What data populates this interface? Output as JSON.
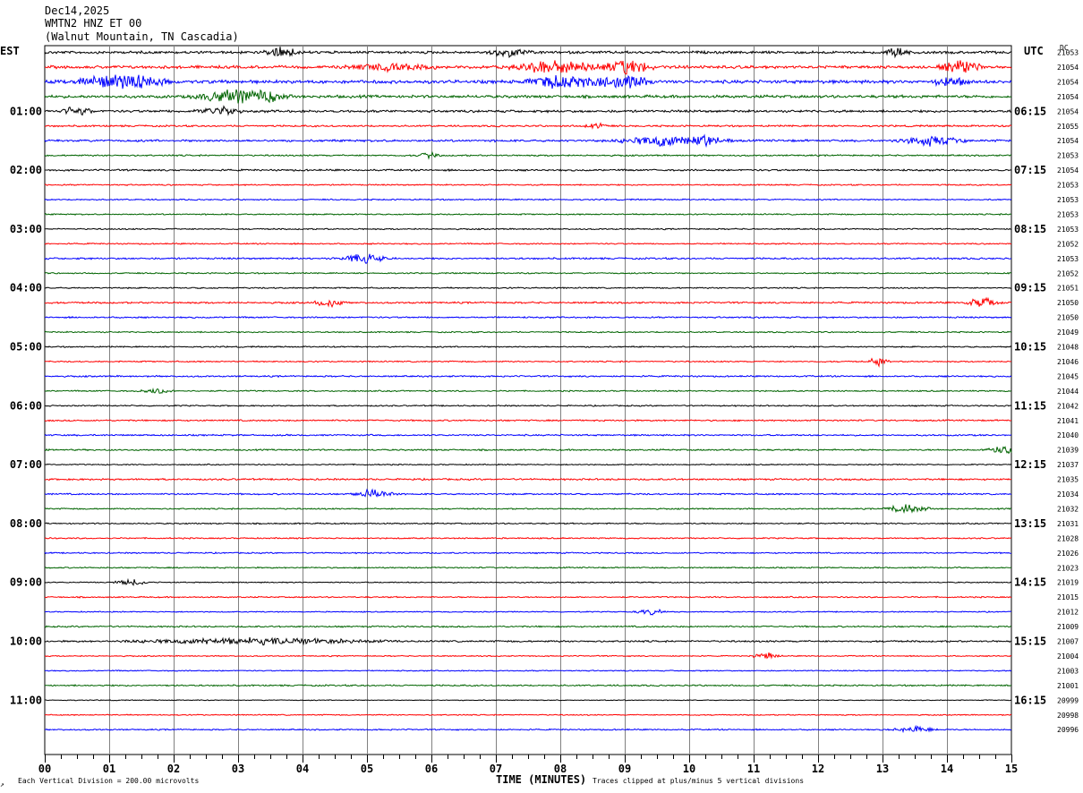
{
  "header": {
    "date": "Dec14,2025",
    "station": "WMTN2 HNZ ET 00",
    "location": "(Walnut Mountain, TN Cascadia)"
  },
  "left_timezone": "EST",
  "right_timezone": "UTC",
  "dc_label": "DC",
  "chart_data": {
    "type": "line",
    "title": "",
    "xlabel": "TIME (MINUTES)",
    "xlim": [
      0,
      15
    ],
    "x_ticks": [
      "00",
      "01",
      "02",
      "03",
      "04",
      "05",
      "06",
      "07",
      "08",
      "09",
      "10",
      "11",
      "12",
      "13",
      "14",
      "15"
    ],
    "minor_ticks_per_minute": 4,
    "grid": "vertical lines every minute",
    "trace_colors": [
      "#000000",
      "#ff0000",
      "#0000ff",
      "#006400"
    ],
    "left_hour_labels": [
      "01:00",
      "02:00",
      "03:00",
      "04:00",
      "05:00",
      "06:00",
      "07:00",
      "08:00",
      "09:00",
      "10:00",
      "11:00"
    ],
    "right_hour_labels": [
      "06:15",
      "07:15",
      "08:15",
      "09:15",
      "10:15",
      "11:15",
      "12:15",
      "13:15",
      "14:15",
      "15:15",
      "16:15"
    ],
    "dc_offsets": [
      "21053",
      "21054",
      "21054",
      "21054",
      "21054",
      "21055",
      "21054",
      "21053",
      "21054",
      "21053",
      "21053",
      "21053",
      "21053",
      "21052",
      "21053",
      "21052",
      "21051",
      "21050",
      "21050",
      "21049",
      "21048",
      "21046",
      "21045",
      "21044",
      "21042",
      "21041",
      "21040",
      "21039",
      "21037",
      "21035",
      "21034",
      "21032",
      "21031",
      "21028",
      "21026",
      "21023",
      "21019",
      "21015",
      "21012",
      "21009",
      "21007",
      "21004",
      "21003",
      "21001",
      "20999",
      "20998",
      "20996"
    ],
    "activity": [
      1.2,
      1.3,
      1.5,
      1.3,
      1.1,
      0.8,
      1.0,
      0.7,
      0.8,
      0.6,
      0.6,
      0.6,
      0.6,
      0.6,
      0.8,
      0.6,
      0.6,
      0.8,
      0.7,
      0.6,
      0.6,
      0.6,
      0.7,
      0.6,
      0.6,
      0.7,
      0.7,
      0.7,
      0.5,
      0.8,
      0.7,
      0.6,
      0.6,
      0.6,
      0.6,
      0.6,
      0.5,
      0.6,
      0.5,
      0.7,
      0.8,
      0.5,
      0.5,
      0.7,
      0.4,
      0.5,
      0.6
    ],
    "events": [
      {
        "trace": 0,
        "minute": 3.4,
        "dur": 0.5,
        "amp": 6
      },
      {
        "trace": 0,
        "minute": 6.9,
        "dur": 0.6,
        "amp": 6
      },
      {
        "trace": 0,
        "minute": 13.0,
        "dur": 0.4,
        "amp": 6
      },
      {
        "trace": 1,
        "minute": 7.3,
        "dur": 1.2,
        "amp": 9
      },
      {
        "trace": 1,
        "minute": 8.6,
        "dur": 0.8,
        "amp": 9
      },
      {
        "trace": 1,
        "minute": 13.9,
        "dur": 0.6,
        "amp": 8
      },
      {
        "trace": 1,
        "minute": 4.8,
        "dur": 1.2,
        "amp": 5
      },
      {
        "trace": 2,
        "minute": 0.6,
        "dur": 1.2,
        "amp": 11
      },
      {
        "trace": 2,
        "minute": 7.5,
        "dur": 1.0,
        "amp": 8
      },
      {
        "trace": 2,
        "minute": 8.4,
        "dur": 1.0,
        "amp": 9
      },
      {
        "trace": 2,
        "minute": 13.8,
        "dur": 0.5,
        "amp": 7
      },
      {
        "trace": 3,
        "minute": 2.4,
        "dur": 1.0,
        "amp": 9
      },
      {
        "trace": 3,
        "minute": 3.2,
        "dur": 0.6,
        "amp": 6
      },
      {
        "trace": 4,
        "minute": 0.3,
        "dur": 0.4,
        "amp": 7
      },
      {
        "trace": 4,
        "minute": 2.4,
        "dur": 0.6,
        "amp": 6
      },
      {
        "trace": 5,
        "minute": 8.4,
        "dur": 0.3,
        "amp": 4
      },
      {
        "trace": 6,
        "minute": 9.0,
        "dur": 1.2,
        "amp": 7
      },
      {
        "trace": 6,
        "minute": 10.0,
        "dur": 0.6,
        "amp": 7
      },
      {
        "trace": 6,
        "minute": 13.3,
        "dur": 0.9,
        "amp": 6
      },
      {
        "trace": 7,
        "minute": 5.8,
        "dur": 0.3,
        "amp": 4
      },
      {
        "trace": 14,
        "minute": 4.6,
        "dur": 0.7,
        "amp": 6
      },
      {
        "trace": 17,
        "minute": 4.2,
        "dur": 0.4,
        "amp": 6
      },
      {
        "trace": 17,
        "minute": 14.3,
        "dur": 0.5,
        "amp": 6
      },
      {
        "trace": 21,
        "minute": 12.8,
        "dur": 0.3,
        "amp": 6
      },
      {
        "trace": 23,
        "minute": 1.5,
        "dur": 0.5,
        "amp": 4
      },
      {
        "trace": 27,
        "minute": 14.6,
        "dur": 0.6,
        "amp": 6
      },
      {
        "trace": 30,
        "minute": 4.8,
        "dur": 0.6,
        "amp": 6
      },
      {
        "trace": 31,
        "minute": 13.1,
        "dur": 0.6,
        "amp": 7
      },
      {
        "trace": 36,
        "minute": 1.1,
        "dur": 0.5,
        "amp": 4
      },
      {
        "trace": 38,
        "minute": 9.2,
        "dur": 0.4,
        "amp": 4
      },
      {
        "trace": 40,
        "minute": 1.6,
        "dur": 3.5,
        "amp": 4
      },
      {
        "trace": 41,
        "minute": 11.0,
        "dur": 0.4,
        "amp": 4
      },
      {
        "trace": 46,
        "minute": 13.2,
        "dur": 0.6,
        "amp": 4
      }
    ]
  },
  "footer": {
    "scale": "Each Vertical Division =  200.00 microvolts",
    "clip": "Traces clipped at plus/minus 5 vertical divisions"
  }
}
